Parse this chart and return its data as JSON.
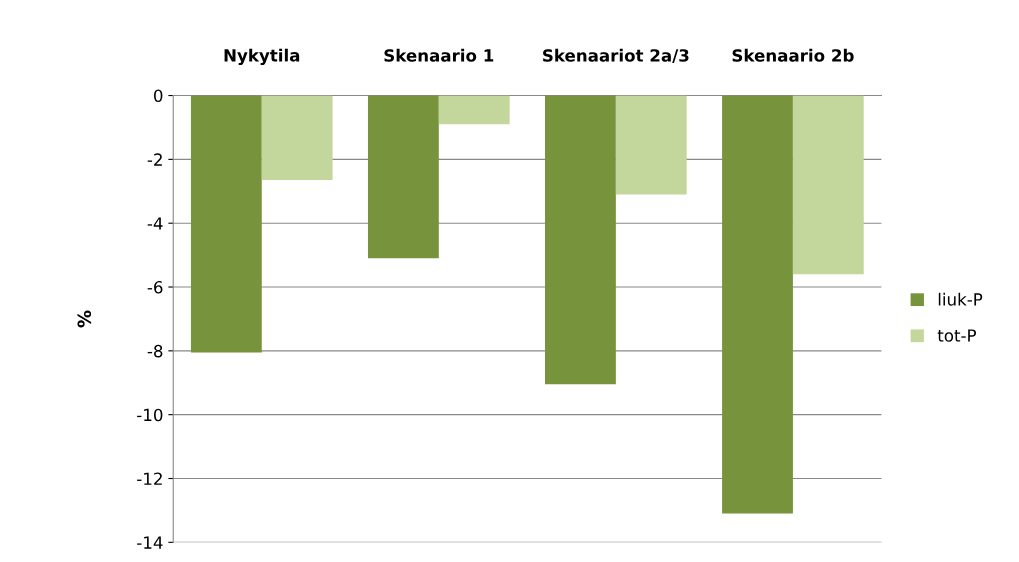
{
  "chart_data": {
    "type": "bar",
    "ylabel": "%",
    "categories": [
      "Nykytila",
      "Skenaario 1",
      "Skenaariot 2a/3",
      "Skenaario 2b"
    ],
    "series": [
      {
        "name": "liuk-P",
        "color": "#77933c",
        "values": [
          -8.05,
          -5.1,
          -9.05,
          -13.1
        ]
      },
      {
        "name": "tot-P",
        "color": "#c3d69b",
        "values": [
          -2.65,
          -0.9,
          -3.1,
          -5.6
        ]
      }
    ],
    "ylim": [
      -14,
      0
    ],
    "yticks": [
      -14,
      -12,
      -10,
      -8,
      -6,
      -4,
      -2,
      0
    ],
    "grid": "y",
    "legend": "right"
  }
}
